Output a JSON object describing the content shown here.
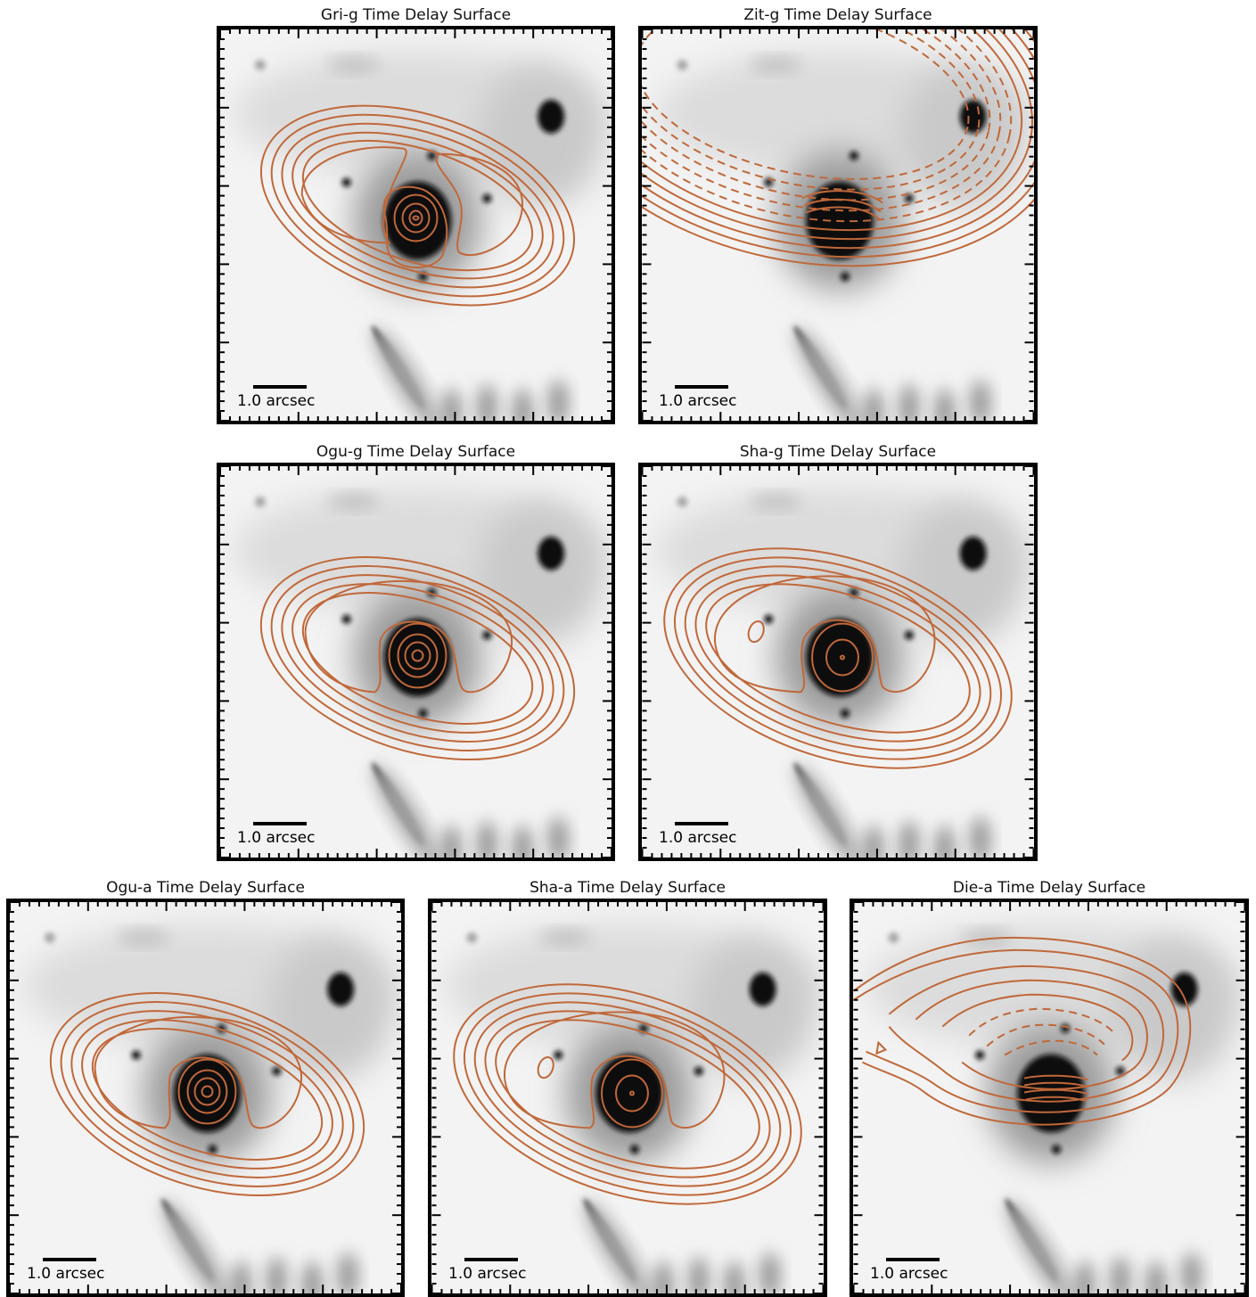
{
  "figure": {
    "panels": [
      {
        "id": "gri-g",
        "title": "Gri-g Time Delay Surface",
        "model": "gri"
      },
      {
        "id": "zit-g",
        "title": "Zit-g Time Delay Surface",
        "model": "zit"
      },
      {
        "id": "ogu-g",
        "title": "Ogu-g Time Delay Surface",
        "model": "ogu"
      },
      {
        "id": "sha-g",
        "title": "Sha-g Time Delay Surface",
        "model": "sha"
      },
      {
        "id": "ogu-a",
        "title": "Ogu-a Time Delay Surface",
        "model": "ogu"
      },
      {
        "id": "sha-a",
        "title": "Sha-a Time Delay Surface",
        "model": "sha"
      },
      {
        "id": "die-a",
        "title": "Die-a Time Delay Surface",
        "model": "die"
      }
    ],
    "scalebar_label": "1.0 arcsec",
    "contour_color": "#c0683a"
  }
}
